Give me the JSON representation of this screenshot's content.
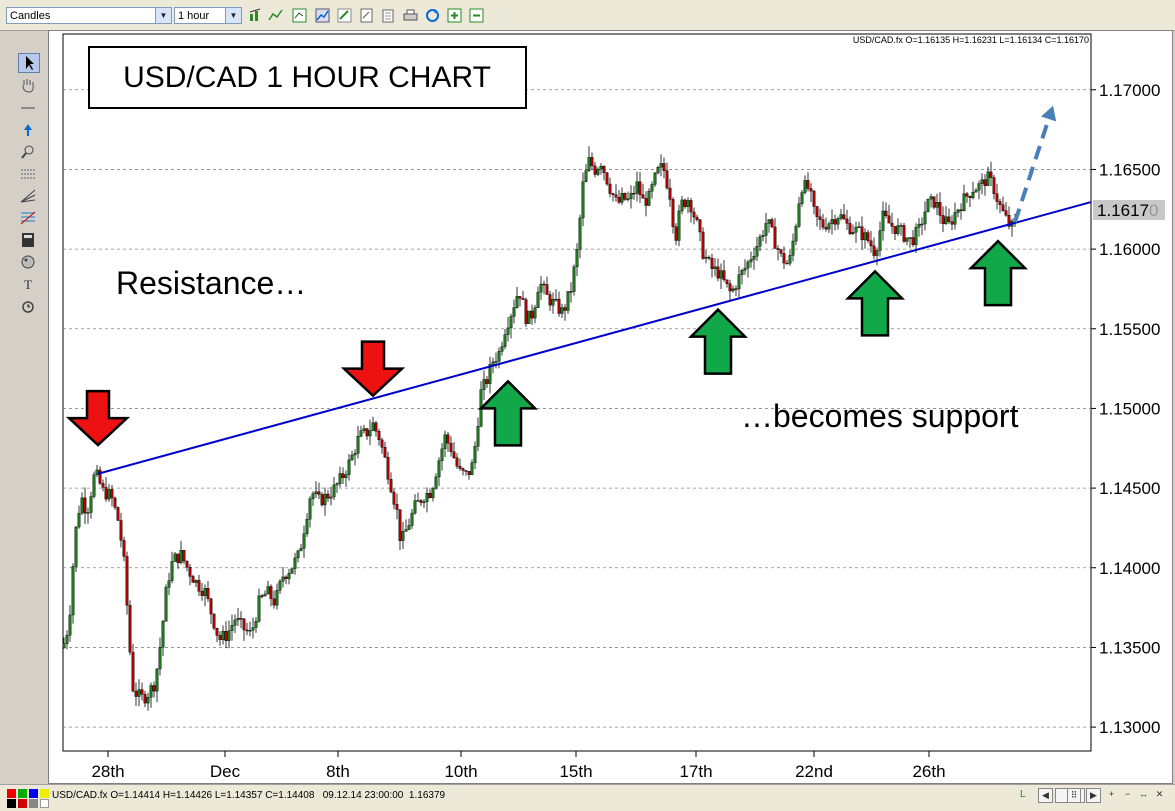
{
  "toolbar": {
    "chart_type": "Candles",
    "timeframe": "1 hour",
    "icons": [
      "bar-chart-icon",
      "line-chart-icon",
      "indicators-icon",
      "trend-icon",
      "draw-icon",
      "template-icon",
      "copy-icon",
      "print-icon",
      "refresh-icon",
      "zoom-in-icon",
      "zoom-out-icon"
    ]
  },
  "left_tools": [
    "pointer-icon",
    "hand-icon",
    "horizontal-line-icon",
    "arrow-icon",
    "zoom-icon",
    "grid-icon",
    "fan-icon",
    "fibonacci-icon",
    "calculator-icon",
    "palette-icon",
    "text-icon",
    "alarm-icon"
  ],
  "chart": {
    "header_text": "USD/CAD.fx O=1.16135 H=1.16231 L=1.16134 C=1.16170",
    "title": "USD/CAD 1 HOUR CHART",
    "label_resistance": "Resistance…",
    "label_support": "…becomes support",
    "current_price": "1.1617",
    "current_price_digit": "0",
    "colors": {
      "up_candle": "#1a7a1a",
      "down_candle": "#b00000",
      "trendline": "#0000cc",
      "red_arrow": "#ee1111",
      "green_arrow": "#11a84a",
      "forecast": "#4a7fb8"
    }
  },
  "chart_data": {
    "type": "candlestick",
    "symbol": "USD/CAD",
    "timeframe": "1 hour",
    "ylim": [
      1.1285,
      1.1735
    ],
    "y_ticks": [
      "1.17000",
      "1.16500",
      "1.16000",
      "1.15500",
      "1.15000",
      "1.14500",
      "1.14000",
      "1.13500",
      "1.13000"
    ],
    "y_tick_values": [
      1.17,
      1.165,
      1.16,
      1.155,
      1.15,
      1.145,
      1.14,
      1.135,
      1.13
    ],
    "x_ticks": [
      "28th",
      "Dec",
      "8th",
      "10th",
      "15th",
      "17th",
      "22nd",
      "26th"
    ],
    "x_tick_values": [
      45,
      162,
      275,
      398,
      513,
      633,
      751,
      866
    ],
    "x_range": [
      0,
      1028
    ],
    "close_path": [
      [
        0,
        1.135
      ],
      [
        6,
        1.1365
      ],
      [
        12,
        1.142
      ],
      [
        18,
        1.1445
      ],
      [
        24,
        1.1435
      ],
      [
        32,
        1.146
      ],
      [
        40,
        1.1448
      ],
      [
        48,
        1.1445
      ],
      [
        56,
        1.1428
      ],
      [
        62,
        1.1398
      ],
      [
        66,
        1.1355
      ],
      [
        70,
        1.1325
      ],
      [
        74,
        1.132
      ],
      [
        80,
        1.1318
      ],
      [
        86,
        1.1322
      ],
      [
        92,
        1.1328
      ],
      [
        98,
        1.1355
      ],
      [
        104,
        1.139
      ],
      [
        110,
        1.1405
      ],
      [
        118,
        1.1408
      ],
      [
        126,
        1.1398
      ],
      [
        134,
        1.139
      ],
      [
        142,
        1.1385
      ],
      [
        150,
        1.1368
      ],
      [
        156,
        1.1355
      ],
      [
        164,
        1.1358
      ],
      [
        172,
        1.1368
      ],
      [
        180,
        1.1362
      ],
      [
        188,
        1.1358
      ],
      [
        196,
        1.1378
      ],
      [
        204,
        1.1385
      ],
      [
        212,
        1.1378
      ],
      [
        220,
        1.1395
      ],
      [
        228,
        1.14
      ],
      [
        236,
        1.1408
      ],
      [
        242,
        1.1428
      ],
      [
        248,
        1.1448
      ],
      [
        256,
        1.1442
      ],
      [
        264,
        1.1445
      ],
      [
        272,
        1.145
      ],
      [
        280,
        1.1458
      ],
      [
        288,
        1.1468
      ],
      [
        296,
        1.1482
      ],
      [
        304,
        1.1485
      ],
      [
        310,
        1.149
      ],
      [
        316,
        1.1482
      ],
      [
        322,
        1.1468
      ],
      [
        328,
        1.1452
      ],
      [
        334,
        1.1435
      ],
      [
        338,
        1.1415
      ],
      [
        344,
        1.1425
      ],
      [
        352,
        1.1438
      ],
      [
        360,
        1.1445
      ],
      [
        368,
        1.1448
      ],
      [
        376,
        1.1468
      ],
      [
        382,
        1.1482
      ],
      [
        388,
        1.1475
      ],
      [
        396,
        1.146
      ],
      [
        404,
        1.1458
      ],
      [
        410,
        1.1465
      ],
      [
        418,
        1.151
      ],
      [
        424,
        1.1518
      ],
      [
        430,
        1.153
      ],
      [
        436,
        1.1535
      ],
      [
        442,
        1.155
      ],
      [
        448,
        1.156
      ],
      [
        456,
        1.1575
      ],
      [
        464,
        1.1555
      ],
      [
        470,
        1.156
      ],
      [
        476,
        1.158
      ],
      [
        484,
        1.157
      ],
      [
        492,
        1.1565
      ],
      [
        500,
        1.156
      ],
      [
        508,
        1.1575
      ],
      [
        514,
        1.1598
      ],
      [
        520,
        1.164
      ],
      [
        526,
        1.1655
      ],
      [
        532,
        1.165
      ],
      [
        538,
        1.1655
      ],
      [
        546,
        1.164
      ],
      [
        554,
        1.1628
      ],
      [
        560,
        1.1632
      ],
      [
        566,
        1.163
      ],
      [
        574,
        1.164
      ],
      [
        580,
        1.163
      ],
      [
        586,
        1.1632
      ],
      [
        594,
        1.1648
      ],
      [
        600,
        1.1652
      ],
      [
        608,
        1.1632
      ],
      [
        612,
        1.1605
      ],
      [
        618,
        1.1628
      ],
      [
        626,
        1.1632
      ],
      [
        634,
        1.1615
      ],
      [
        640,
        1.1598
      ],
      [
        648,
        1.1588
      ],
      [
        656,
        1.1585
      ],
      [
        662,
        1.1578
      ],
      [
        668,
        1.1572
      ],
      [
        676,
        1.1582
      ],
      [
        684,
        1.159
      ],
      [
        690,
        1.1598
      ],
      [
        696,
        1.1605
      ],
      [
        704,
        1.1618
      ],
      [
        710,
        1.1608
      ],
      [
        718,
        1.1595
      ],
      [
        726,
        1.159
      ],
      [
        732,
        1.1612
      ],
      [
        738,
        1.164
      ],
      [
        746,
        1.1638
      ],
      [
        752,
        1.162
      ],
      [
        760,
        1.1615
      ],
      [
        768,
        1.1618
      ],
      [
        776,
        1.1622
      ],
      [
        784,
        1.1615
      ],
      [
        792,
        1.1612
      ],
      [
        798,
        1.161
      ],
      [
        806,
        1.1605
      ],
      [
        812,
        1.1598
      ],
      [
        820,
        1.162
      ],
      [
        828,
        1.1615
      ],
      [
        836,
        1.1612
      ],
      [
        842,
        1.1608
      ],
      [
        848,
        1.1605
      ],
      [
        856,
        1.1612
      ],
      [
        864,
        1.1628
      ],
      [
        872,
        1.163
      ],
      [
        880,
        1.1618
      ],
      [
        886,
        1.1615
      ],
      [
        894,
        1.1625
      ],
      [
        902,
        1.1632
      ],
      [
        910,
        1.1638
      ],
      [
        918,
        1.164
      ],
      [
        924,
        1.1645
      ],
      [
        930,
        1.164
      ],
      [
        936,
        1.1628
      ],
      [
        942,
        1.162
      ],
      [
        948,
        1.1613
      ],
      [
        952,
        1.1617
      ]
    ],
    "trendline": {
      "start": [
        35,
        1.1459
      ],
      "end": [
        1028,
        1.16295
      ]
    },
    "annotations": {
      "red_arrows": [
        [
          35,
          1.1477
        ],
        [
          310,
          1.1508
        ]
      ],
      "green_arrows": [
        [
          445,
          1.1517
        ],
        [
          655,
          1.1562
        ],
        [
          812,
          1.1586
        ],
        [
          935,
          1.1605
        ]
      ],
      "forecast": {
        "from": [
          952,
          1.1617
        ],
        "to": [
          990,
          1.169
        ]
      }
    }
  }
}
